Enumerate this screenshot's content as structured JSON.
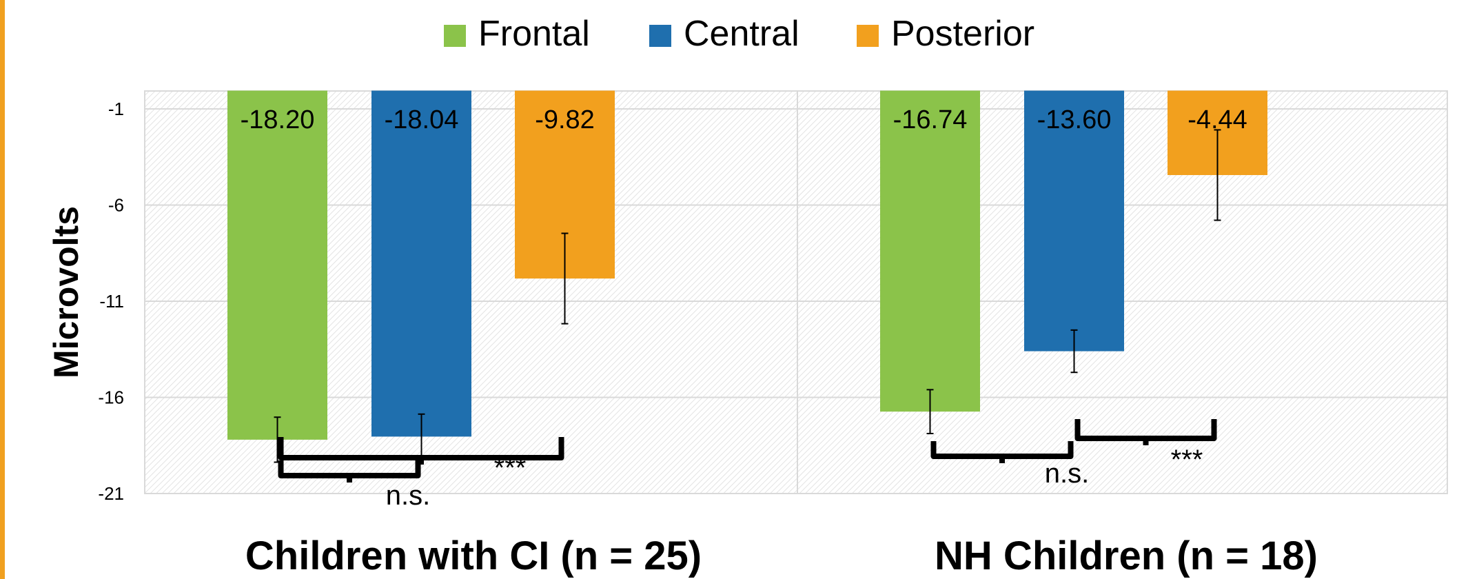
{
  "colors": {
    "accent_strip": "#f0a020",
    "frontal": "#8bc34a",
    "central": "#1f6fae",
    "posterior": "#f2a01e",
    "plot_border": "#d9d9d9",
    "hatch": "#e3e3e3",
    "text": "#000000"
  },
  "chart_data": {
    "type": "bar",
    "ylabel": "Microvolts",
    "ylim": [
      -21,
      -1
    ],
    "ytick_values": [
      -1,
      -6,
      -11,
      -16,
      -21
    ],
    "yticks": [
      "-1",
      "-6",
      "-11",
      "-16",
      "-21"
    ],
    "bar_baseline": -0.05,
    "grid": true,
    "legend_position": "top-center",
    "categories": [
      "Children with CI (n = 25)",
      "NH Children (n = 18)"
    ],
    "series": [
      {
        "name": "Frontal",
        "color_key": "frontal",
        "values": [
          -18.2,
          -16.74
        ],
        "labels": [
          "-18.20",
          "-16.74"
        ],
        "error": [
          1.17,
          1.14
        ]
      },
      {
        "name": "Central",
        "color_key": "central",
        "values": [
          -18.04,
          -13.6
        ],
        "labels": [
          "-18.04",
          "-13.60"
        ],
        "error": [
          1.17,
          1.1
        ]
      },
      {
        "name": "Posterior",
        "color_key": "posterior",
        "values": [
          -9.82,
          -4.44
        ],
        "labels": [
          "-9.82",
          "-4.44"
        ],
        "error": [
          2.35,
          2.35
        ]
      }
    ],
    "annotations": [
      {
        "group": 0,
        "from_series": 0,
        "to_series": 1,
        "text": "n.s."
      },
      {
        "group": 0,
        "from_series": 0,
        "to_series": 2,
        "text": "***"
      },
      {
        "group": 1,
        "from_series": 0,
        "to_series": 1,
        "text": "n.s."
      },
      {
        "group": 1,
        "from_series": 1,
        "to_series": 2,
        "text": "***"
      }
    ]
  }
}
